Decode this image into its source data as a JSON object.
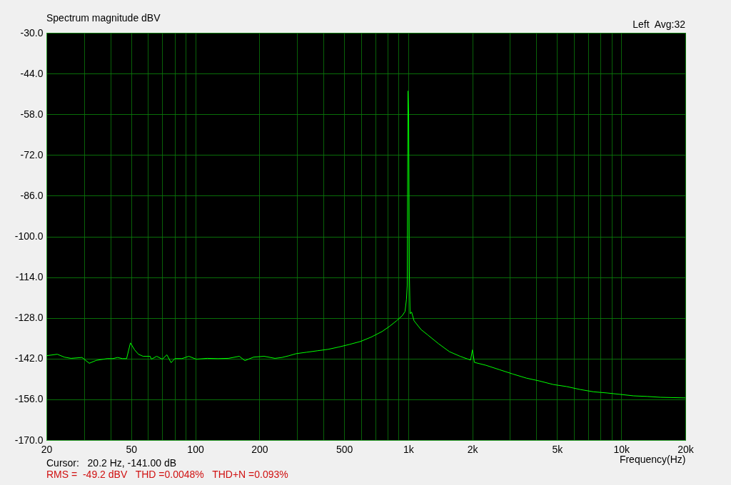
{
  "chart_data": {
    "type": "line",
    "title": "Spectrum magnitude dBV",
    "xlabel": "Frequency(Hz)",
    "log": "x",
    "grid": true,
    "marker": "none",
    "line_style": "solid",
    "annotations": [
      "Left  Avg:32",
      "Cursor:   20.2 Hz, -141.00 dB",
      "RMS =  -49.2 dBV   THD =0.0048%   THD+N =0.093%"
    ],
    "xlim": [
      20,
      20000
    ],
    "xticks": [
      20,
      {
        "value": 30,
        "label": null
      },
      {
        "value": 40,
        "label": null
      },
      50,
      {
        "value": 60,
        "label": null
      },
      {
        "value": 70,
        "label": null
      },
      {
        "value": 80,
        "label": null
      },
      {
        "value": 90,
        "label": null
      },
      100,
      200,
      {
        "value": 300,
        "label": null
      },
      {
        "value": 400,
        "label": null
      },
      500,
      {
        "value": 600,
        "label": null
      },
      {
        "value": 700,
        "label": null
      },
      {
        "value": 800,
        "label": null
      },
      {
        "value": 900,
        "label": null
      },
      {
        "value": 1000,
        "label": "1k"
      },
      {
        "value": 2000,
        "label": "2k"
      },
      {
        "value": 3000,
        "label": null
      },
      {
        "value": 4000,
        "label": null
      },
      {
        "value": 5000,
        "label": "5k"
      },
      {
        "value": 6000,
        "label": null
      },
      {
        "value": 7000,
        "label": null
      },
      {
        "value": 8000,
        "label": null
      },
      {
        "value": 9000,
        "label": null
      },
      {
        "value": 10000,
        "label": "10k"
      },
      {
        "value": 20000,
        "label": "20k"
      }
    ],
    "ylim": [
      -170,
      -30
    ],
    "yticks": [
      {
        "value": -170,
        "label": "-170.0"
      },
      {
        "value": -156,
        "label": "-156.0"
      },
      {
        "value": -142,
        "label": "-142.0"
      },
      {
        "value": -128,
        "label": "-128.0"
      },
      {
        "value": -114,
        "label": "-114.0"
      },
      {
        "value": -100,
        "label": "-100.0"
      },
      {
        "value": -86,
        "label": "-86.0"
      },
      {
        "value": -72,
        "label": "-72.0"
      },
      {
        "value": -58,
        "label": "-58.0"
      },
      {
        "value": -44,
        "label": "-44.0"
      },
      {
        "value": -30,
        "label": "-30.0"
      }
    ],
    "series": [
      {
        "color": "#00ff00",
        "x": [
          20,
          22.5,
          24.3,
          26.1,
          29.4,
          31.8,
          34.3,
          38.6,
          41,
          43.2,
          45.5,
          47.6,
          49.6,
          51.9,
          54.1,
          56.9,
          61.4,
          62.2,
          65.9,
          70,
          73.6,
          77,
          80.1,
          86.5,
          93.3,
          101,
          113.8,
          127.6,
          143.3,
          161,
          171,
          187.5,
          210.5,
          236.7,
          255.5,
          275.6,
          297.5,
          334,
          375,
          421,
          473,
          531,
          597,
          670,
          753,
          814,
          881,
          936,
          966,
          981,
          989,
          997,
          1005,
          1012,
          1020,
          1037,
          1065,
          1148,
          1237,
          1389,
          1560,
          1752,
          1962,
          2002,
          2045,
          2319,
          2680,
          3100,
          3585,
          4140,
          4790,
          5540,
          6400,
          7400,
          8560,
          9900,
          11440,
          13230,
          15300,
          20000
        ],
        "values": [
          -141,
          -140.5,
          -141.5,
          -141.9,
          -141.6,
          -143.6,
          -142.6,
          -142,
          -142,
          -141.6,
          -142,
          -142,
          -136.6,
          -139,
          -140.5,
          -141.2,
          -141.2,
          -142.2,
          -141.2,
          -142.2,
          -140.7,
          -143.4,
          -142,
          -142,
          -141.2,
          -142.2,
          -141.9,
          -142,
          -141.9,
          -141.2,
          -142.7,
          -141.5,
          -141.2,
          -141.9,
          -141.6,
          -141,
          -140.3,
          -139.8,
          -139.3,
          -138.8,
          -138,
          -137.1,
          -136.1,
          -134.6,
          -132.7,
          -131,
          -129,
          -127.3,
          -125.8,
          -121.6,
          -116.8,
          -50,
          -57.9,
          -111.9,
          -126.6,
          -126,
          -129,
          -132,
          -133.9,
          -136.9,
          -139.6,
          -141.2,
          -142.5,
          -139,
          -143.3,
          -144.3,
          -145.8,
          -147.3,
          -148.7,
          -149.7,
          -150.9,
          -151.6,
          -152.6,
          -153.4,
          -153.8,
          -154.3,
          -154.8,
          -155,
          -155.3,
          -155.5
        ]
      }
    ]
  }
}
